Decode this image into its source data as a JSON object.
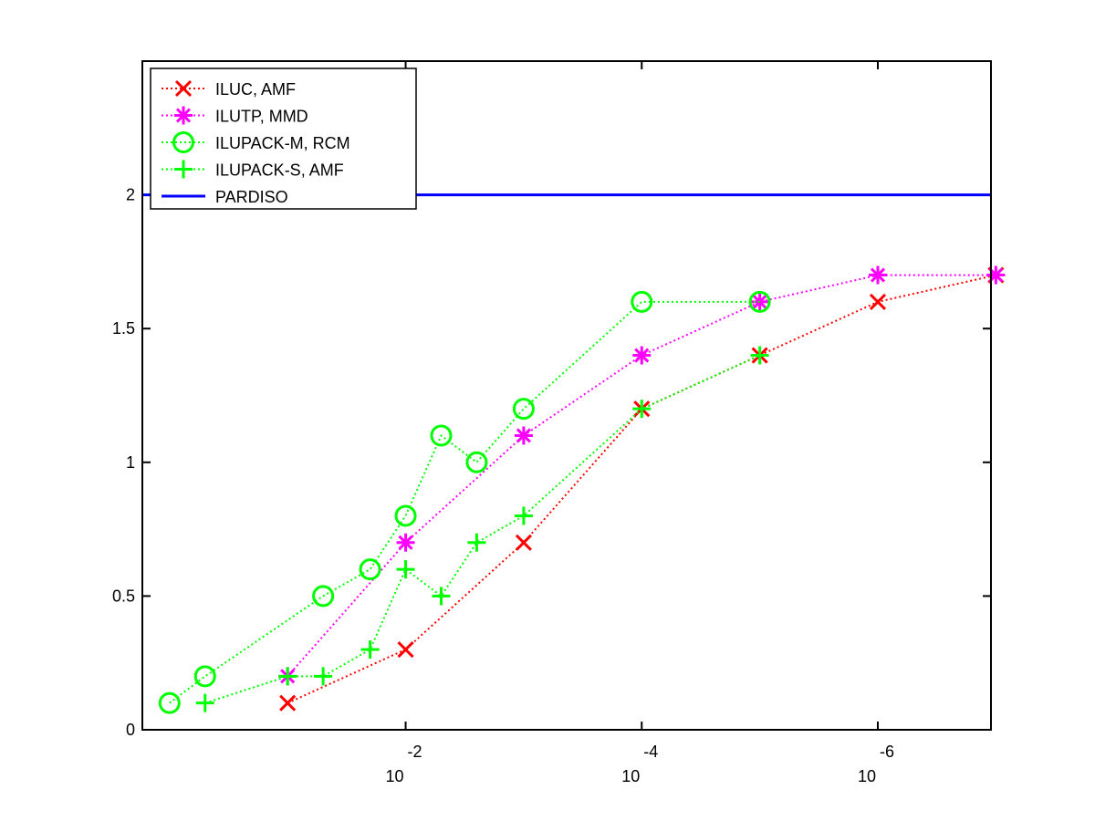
{
  "chart_data": {
    "type": "line",
    "title": "",
    "xlabel": "",
    "ylabel": "",
    "x_scale": "log-reversed",
    "xlim": [
      1.7,
      1.1e-07
    ],
    "ylim": [
      0,
      2.5
    ],
    "yticks": [
      0,
      0.5,
      1,
      1.5,
      2
    ],
    "y_tick_labels": [
      "0",
      "0.5",
      "1",
      "1.5",
      "2"
    ],
    "xticks": [
      0.01,
      0.0001,
      1e-06
    ],
    "x_tick_labels": [
      {
        "base": "10",
        "exp": "-2"
      },
      {
        "base": "10",
        "exp": "-4"
      },
      {
        "base": "10",
        "exp": "-6"
      }
    ],
    "grid": false,
    "legend_position": "top-left",
    "series": [
      {
        "name": "ILUC, AMF",
        "color": "#ff0000",
        "marker": "x",
        "line": "dotted",
        "x": [
          0.1,
          0.01,
          0.001,
          0.0001,
          1e-05,
          1e-06,
          1e-07
        ],
        "y": [
          0.1,
          0.3,
          0.7,
          1.2,
          1.4,
          1.6,
          1.7
        ]
      },
      {
        "name": "ILUTP, MMD",
        "color": "#ff00ff",
        "marker": "asterisk",
        "line": "dotted",
        "x": [
          0.1,
          0.01,
          0.001,
          0.0001,
          1e-05,
          1e-06,
          1e-07
        ],
        "y": [
          0.2,
          0.7,
          1.1,
          1.4,
          1.6,
          1.7,
          1.7
        ]
      },
      {
        "name": "ILUPACK-M, RCM",
        "color": "#00ff00",
        "marker": "circle",
        "line": "dotted",
        "x": [
          1,
          0.5,
          0.05,
          0.02,
          0.01,
          0.005,
          0.0025,
          0.001,
          0.0001,
          1e-05
        ],
        "y": [
          0.1,
          0.2,
          0.5,
          0.6,
          0.8,
          1.1,
          1.0,
          1.2,
          1.6,
          1.6
        ]
      },
      {
        "name": "ILUPACK-S, AMF",
        "color": "#00ff00",
        "marker": "plus",
        "line": "dotted",
        "x": [
          0.5,
          0.1,
          0.05,
          0.02,
          0.01,
          0.005,
          0.0025,
          0.001,
          0.0001,
          1e-05
        ],
        "y": [
          0.1,
          0.2,
          0.2,
          0.3,
          0.6,
          0.5,
          0.7,
          0.8,
          1.2,
          1.4
        ]
      },
      {
        "name": "PARDISO",
        "color": "#0000ff",
        "marker": "none",
        "line": "solid",
        "x": [
          1.7,
          1.1e-07
        ],
        "y": [
          2,
          2
        ]
      }
    ]
  }
}
